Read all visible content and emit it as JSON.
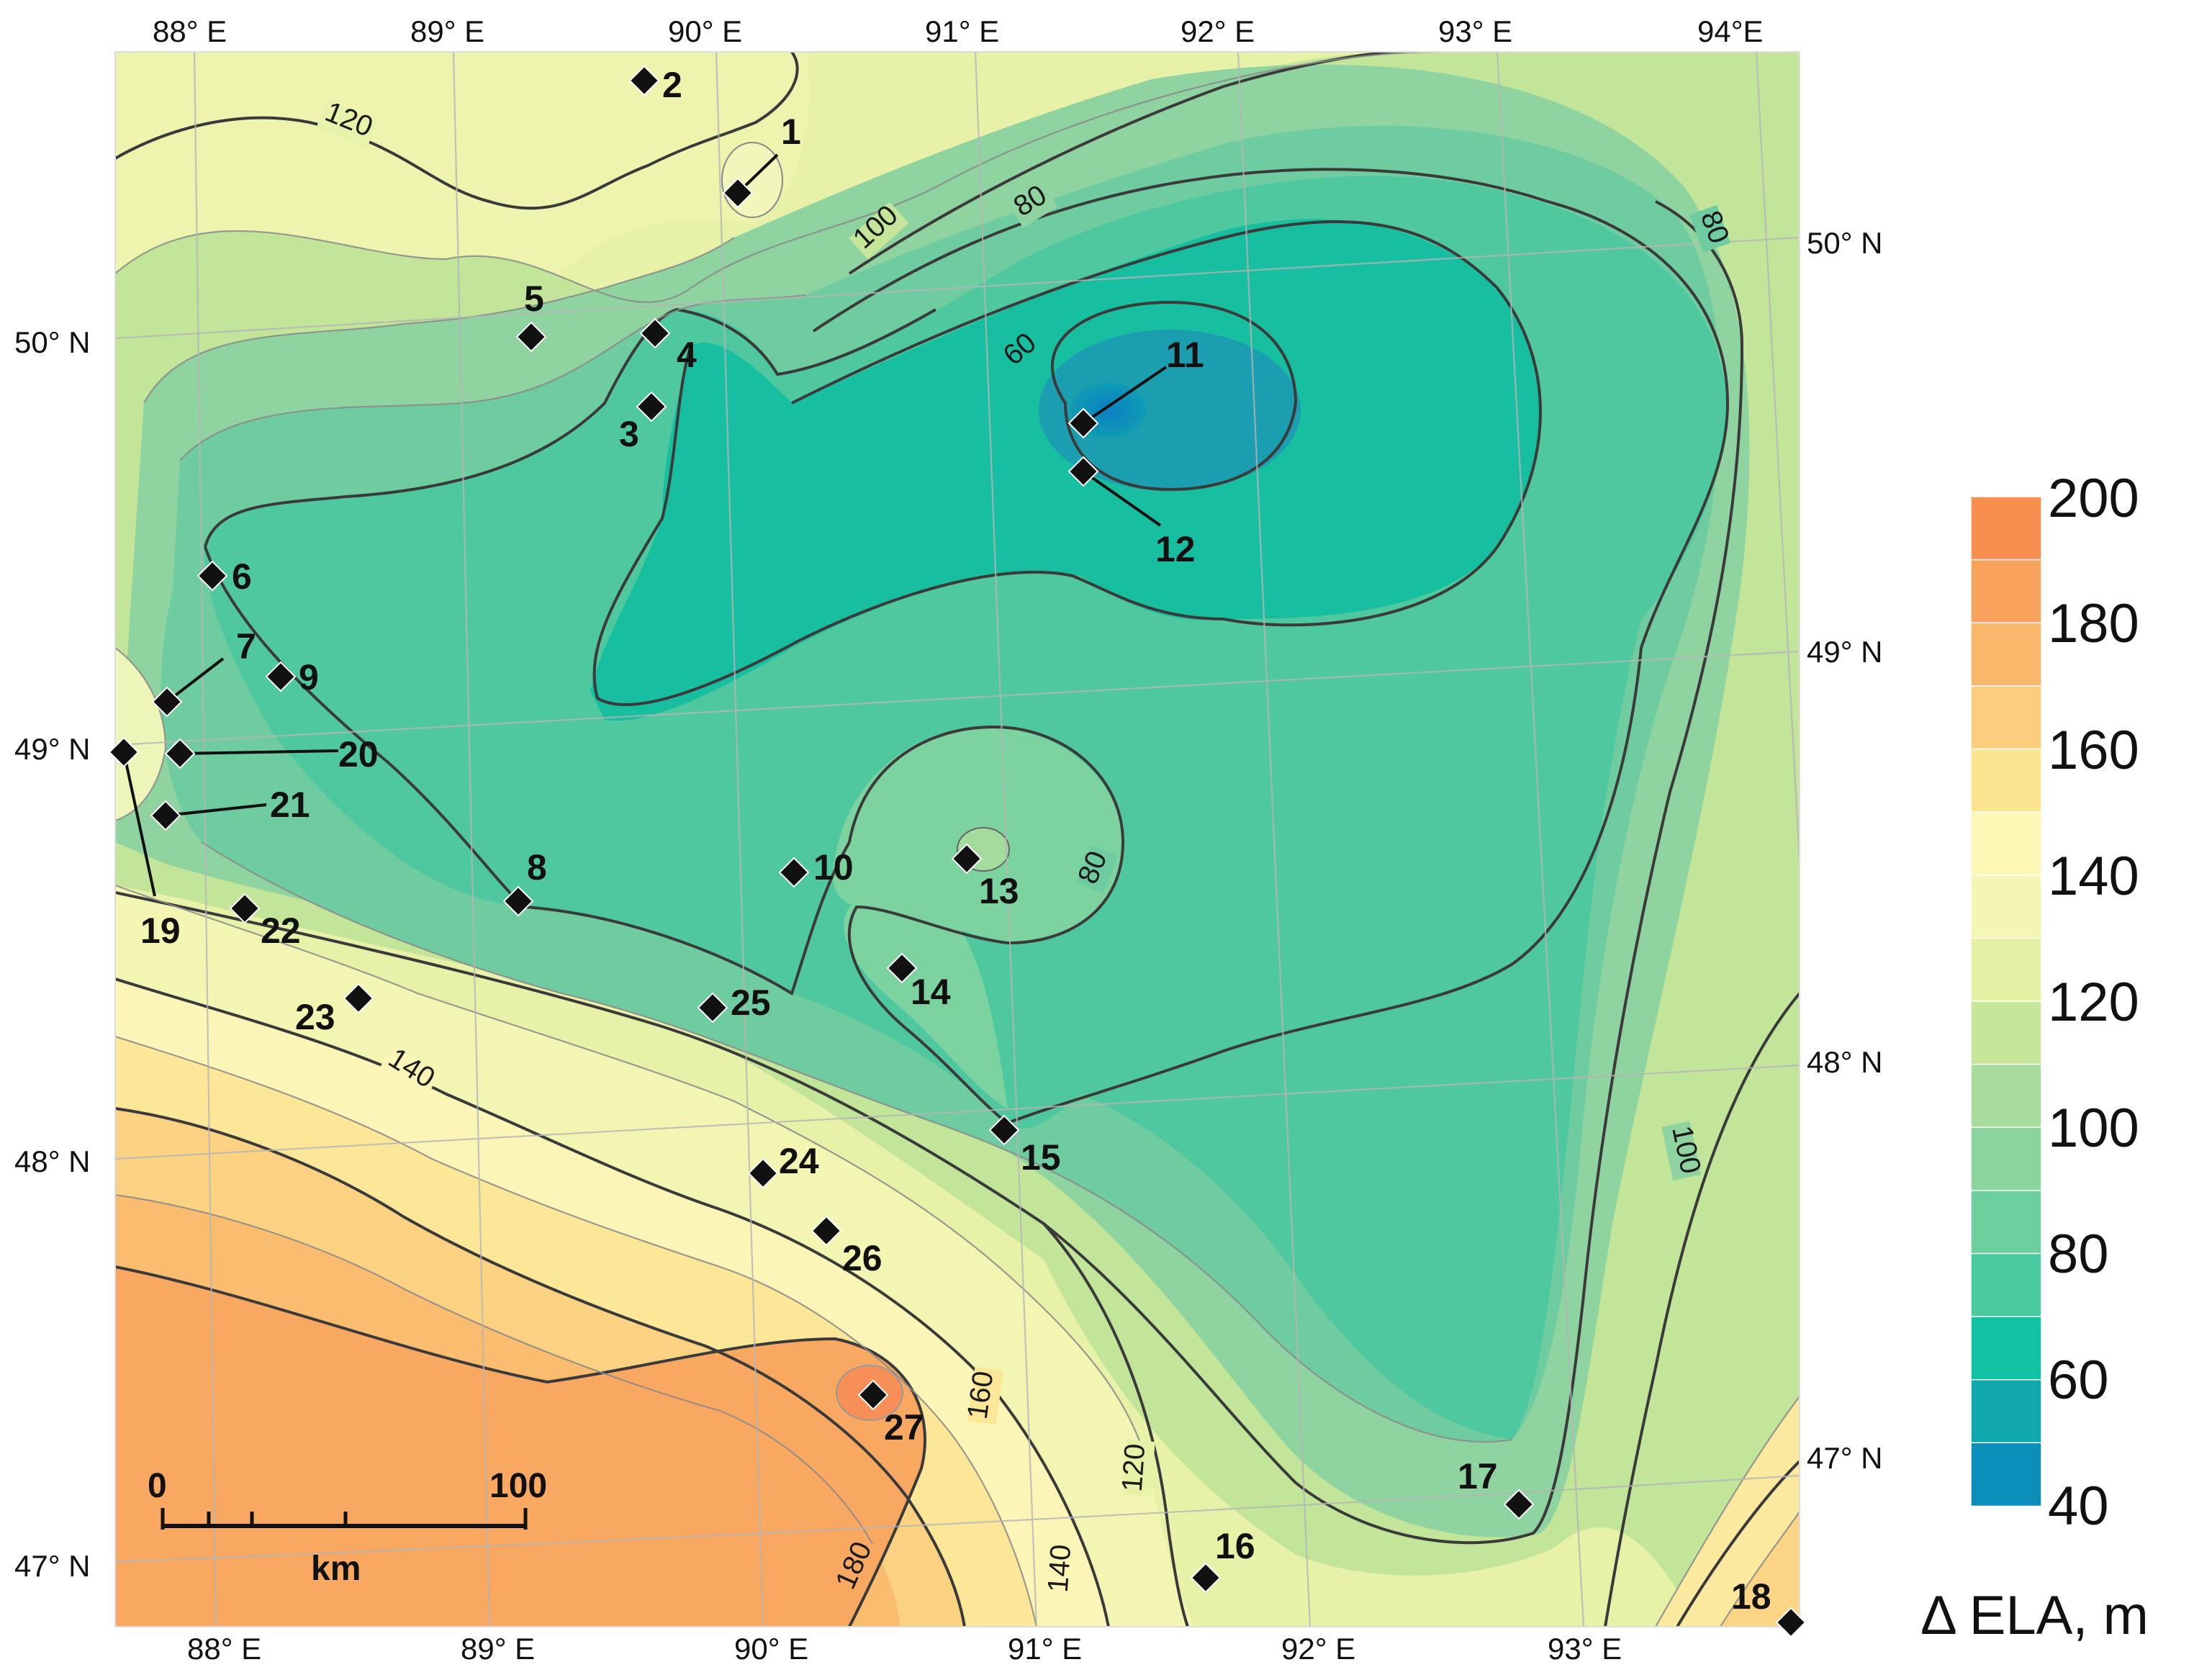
{
  "map": {
    "top_longitude_labels": [
      "88° E",
      "89° E",
      "90° E",
      "91° E",
      "92° E",
      "93° E",
      "94°E"
    ],
    "bottom_longitude_labels": [
      "88° E",
      "89° E",
      "90° E",
      "91° E",
      "92° E",
      "93° E"
    ],
    "left_latitude_labels": [
      "50° N",
      "49° N",
      "48° N",
      "47° N"
    ],
    "right_latitude_labels": [
      "50° N",
      "49° N",
      "48° N",
      "47° N"
    ],
    "contour_labels": [
      "120",
      "100",
      "80",
      "60",
      "80",
      "80",
      "140",
      "100",
      "160",
      "120",
      "140",
      "180"
    ],
    "sites": [
      "1",
      "2",
      "3",
      "4",
      "5",
      "6",
      "7",
      "8",
      "9",
      "10",
      "11",
      "12",
      "13",
      "14",
      "15",
      "16",
      "17",
      "18",
      "19",
      "20",
      "21",
      "22",
      "23",
      "24",
      "25",
      "26",
      "27"
    ]
  },
  "legend": {
    "title": "Δ ELA, m",
    "tick_labels": [
      "200",
      "180",
      "160",
      "140",
      "120",
      "100",
      "80",
      "60",
      "40"
    ],
    "colors": [
      "#f88f51",
      "#f9a25e",
      "#fab76c",
      "#fbcd7d",
      "#fce591",
      "#fdf7b6",
      "#f3f6b4",
      "#e4f1a4",
      "#c6e79b",
      "#a8dc9c",
      "#8bd49e",
      "#6dcf9e",
      "#48c9a0",
      "#12c0a2",
      "#10a8ad",
      "#0b8fba"
    ]
  },
  "scale_bar": {
    "start_label": "0",
    "end_label": "100",
    "unit": "km"
  }
}
